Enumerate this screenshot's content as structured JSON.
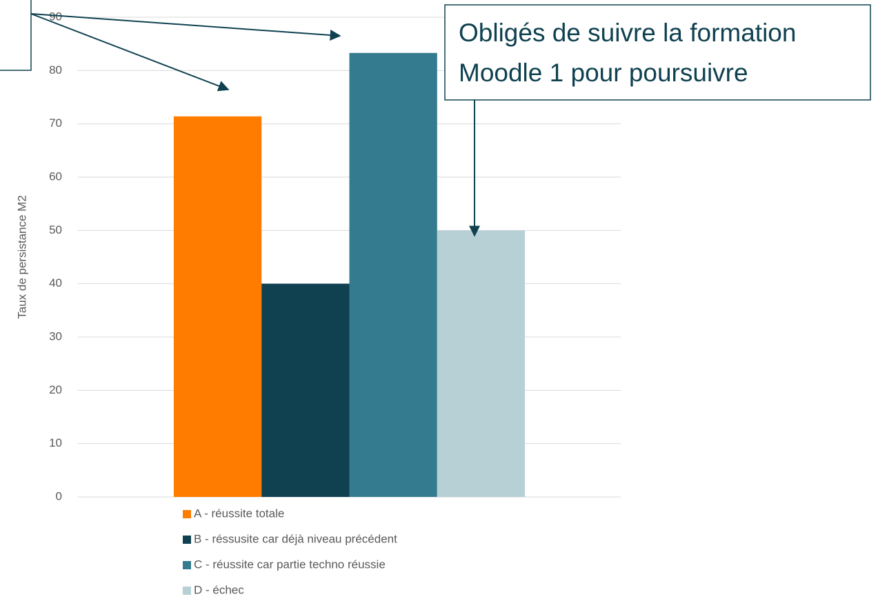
{
  "chart_data": {
    "type": "bar",
    "y_label": "Taux de persistance M2",
    "categories": [
      null
    ],
    "series": [
      {
        "name": "A - réussite totale",
        "color": "#ff7c00",
        "values": [
          71.4
        ]
      },
      {
        "name": "B - réssusite car déjà niveau précédent",
        "color": "#0f4150",
        "values": [
          40
        ]
      },
      {
        "name": "C - réussite car partie techno réussie",
        "color": "#347b8f",
        "values": [
          83.3
        ]
      },
      {
        "name": "D - échec",
        "color": "#b7d0d6",
        "values": [
          50
        ]
      }
    ],
    "ylim": [
      0,
      90
    ],
    "yticks": [
      0,
      10,
      20,
      30,
      40,
      50,
      60,
      70,
      80,
      90
    ],
    "grid": true,
    "annotation": [
      "Obligés de suivre la formation",
      "Moodle 1 pour poursuivre"
    ]
  }
}
